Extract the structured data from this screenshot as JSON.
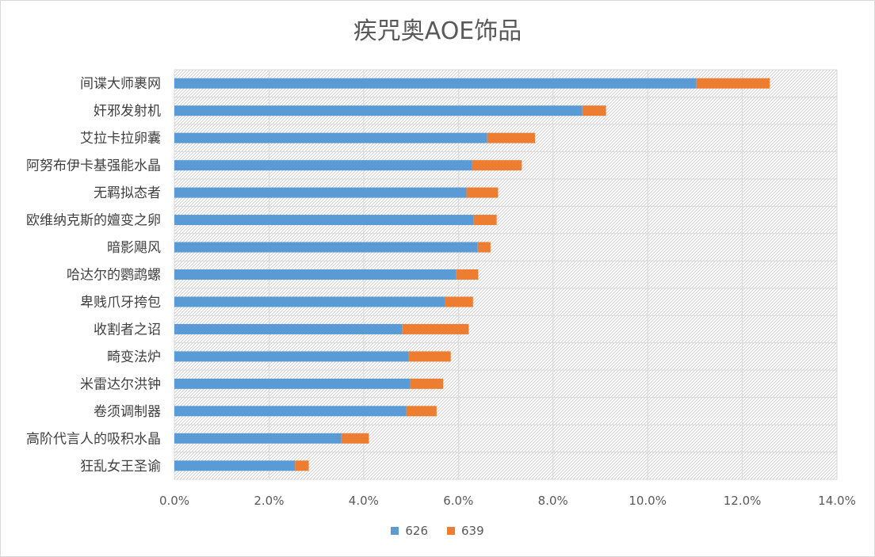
{
  "chart_data": {
    "type": "bar",
    "orientation": "horizontal",
    "stacked": true,
    "title": "疾咒奥AOE饰品",
    "xlabel": "",
    "ylabel": "",
    "xlim": [
      0,
      0.14
    ],
    "x_ticks": [
      "0.0%",
      "2.0%",
      "4.0%",
      "6.0%",
      "8.0%",
      "10.0%",
      "12.0%",
      "14.0%"
    ],
    "grid": true,
    "legend_position": "bottom",
    "categories": [
      "间谍大师裹网",
      "奸邪发射机",
      "艾拉卡拉卵囊",
      "阿努布伊卡基强能水晶",
      "无羁拟态者",
      "欧维纳克斯的嬗变之卵",
      "暗影飓风",
      "哈达尔的鹦鹉螺",
      "卑贱爪牙挎包",
      "收割者之诏",
      "畸变法炉",
      "米雷达尔洪钟",
      "卷须调制器",
      "高阶代言人的吸积水晶",
      "狂乱女王圣谕"
    ],
    "series": [
      {
        "name": "626",
        "color": "#5b9bd5",
        "values": [
          0.1103,
          0.0862,
          0.0661,
          0.0628,
          0.0617,
          0.0632,
          0.0641,
          0.0595,
          0.0571,
          0.0481,
          0.0495,
          0.0498,
          0.049,
          0.0353,
          0.0255
        ]
      },
      {
        "name": "639",
        "color": "#ed7d31",
        "values": [
          0.0155,
          0.005,
          0.0101,
          0.0106,
          0.0067,
          0.0049,
          0.0027,
          0.0047,
          0.006,
          0.0141,
          0.0089,
          0.007,
          0.0064,
          0.0058,
          0.0029
        ]
      }
    ]
  }
}
